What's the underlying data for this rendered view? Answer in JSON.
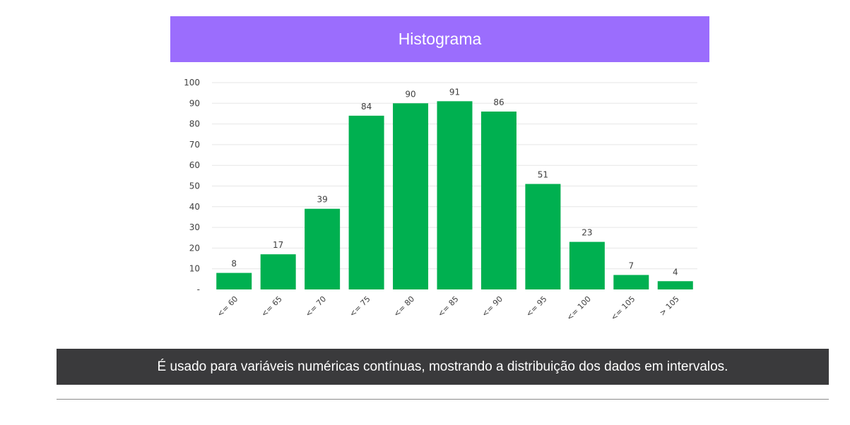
{
  "header": {
    "title": "Histograma"
  },
  "caption": {
    "text": "É usado para variáveis numéricas contínuas, mostrando a distribuição dos dados em intervalos."
  },
  "colors": {
    "title_bg": "#9b6dfd",
    "bar": "#00b050",
    "caption_bg": "#3a3a3c",
    "grid": "#e6e6e6"
  },
  "chart_data": {
    "type": "bar",
    "title": "",
    "xlabel": "",
    "ylabel": "",
    "categories": [
      "<= 60",
      "<= 65",
      "<= 70",
      "<= 75",
      "<= 80",
      "<= 85",
      "<= 90",
      "<= 95",
      "<= 100",
      "<= 105",
      "> 105"
    ],
    "values": [
      8,
      17,
      39,
      84,
      90,
      91,
      86,
      51,
      23,
      7,
      4
    ],
    "ylim": [
      0,
      100
    ],
    "yticks": [
      "-",
      "10",
      "20",
      "30",
      "40",
      "50",
      "60",
      "70",
      "80",
      "90",
      "100"
    ],
    "grid": true,
    "data_labels": true,
    "legend": "none"
  }
}
